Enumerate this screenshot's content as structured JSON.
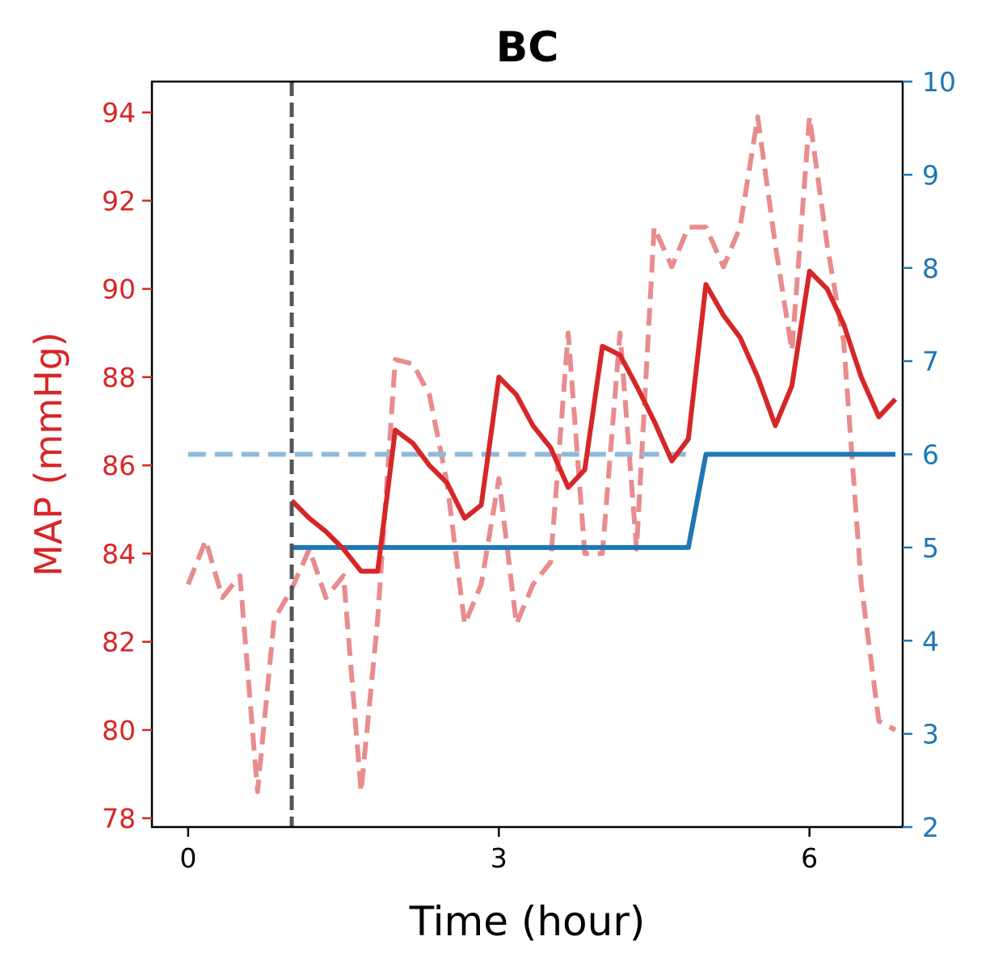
{
  "chart_data": {
    "type": "line",
    "title": "BC",
    "xlabel": "Time (hour)",
    "ylabel": "MAP (mmHg)",
    "ylabel_right": "",
    "xlim": [
      -0.35,
      6.9
    ],
    "ylim": [
      77.8,
      94.7
    ],
    "ylim_right": [
      2,
      10
    ],
    "x_ticks": [
      0,
      3,
      6
    ],
    "y_ticks": [
      78,
      80,
      82,
      84,
      86,
      88,
      90,
      92,
      94
    ],
    "y_right_ticks": [
      2,
      3,
      4,
      5,
      6,
      7,
      8,
      9,
      10
    ],
    "grid": false,
    "legend": "none",
    "colors": {
      "left_axis": "#d62728",
      "right_axis": "#1f77b4",
      "observed_map": "#e88c8e",
      "predicted_map": "#d62728",
      "reference_dose": "#8fbad9",
      "dose": "#1f77b4",
      "intervention_line": "#555555"
    },
    "intervention_time": 1.0,
    "series": [
      {
        "axis": "left",
        "style": "dashed",
        "x": [
          0,
          0.17,
          0.33,
          0.5,
          0.67,
          0.83,
          1.0,
          1.17,
          1.33,
          1.5,
          1.67,
          1.83,
          2.0,
          2.17,
          2.33,
          2.5,
          2.67,
          2.83,
          3.0,
          3.17,
          3.33,
          3.5,
          3.67,
          3.83,
          4.0,
          4.17,
          4.33,
          4.5,
          4.67,
          4.83,
          5.0,
          5.17,
          5.33,
          5.5,
          5.67,
          5.83,
          6.0,
          6.17,
          6.33,
          6.5,
          6.67,
          6.83
        ],
        "values": [
          83.3,
          84.3,
          83.0,
          83.5,
          78.6,
          82.5,
          83.2,
          84.1,
          83.0,
          83.5,
          78.6,
          82.5,
          88.4,
          88.3,
          87.6,
          85.6,
          82.4,
          83.3,
          85.7,
          82.4,
          83.3,
          83.8,
          89.0,
          84.0,
          84.0,
          89.0,
          84.1,
          91.4,
          90.5,
          91.4,
          91.4,
          90.5,
          91.4,
          93.9,
          91.0,
          88.6,
          93.9,
          91.0,
          88.8,
          83.3,
          80.2,
          80.0
        ]
      },
      {
        "axis": "left",
        "style": "solid",
        "x": [
          1.0,
          1.17,
          1.33,
          1.5,
          1.67,
          1.83,
          2.0,
          2.17,
          2.33,
          2.5,
          2.67,
          2.83,
          3.0,
          3.17,
          3.33,
          3.5,
          3.67,
          3.83,
          4.0,
          4.17,
          4.33,
          4.5,
          4.67,
          4.83,
          5.0,
          5.17,
          5.33,
          5.5,
          5.67,
          5.83,
          6.0,
          6.17,
          6.33,
          6.5,
          6.67,
          6.83
        ],
        "values": [
          85.2,
          84.8,
          84.5,
          84.1,
          83.6,
          83.6,
          86.8,
          86.5,
          86.0,
          85.6,
          84.8,
          85.1,
          88.0,
          87.6,
          86.9,
          86.4,
          85.5,
          85.9,
          88.7,
          88.5,
          87.8,
          87.0,
          86.1,
          86.6,
          90.1,
          89.4,
          88.9,
          88.0,
          86.9,
          87.8,
          90.4,
          90.0,
          89.2,
          88.0,
          87.1,
          87.5
        ]
      },
      {
        "axis": "right",
        "style": "dashed",
        "x": [
          0,
          4.83
        ],
        "values": [
          6,
          6
        ]
      },
      {
        "axis": "right",
        "style": "solid",
        "x": [
          1.0,
          4.83,
          5.0,
          6.83
        ],
        "values": [
          5,
          5,
          6,
          6
        ]
      }
    ]
  }
}
